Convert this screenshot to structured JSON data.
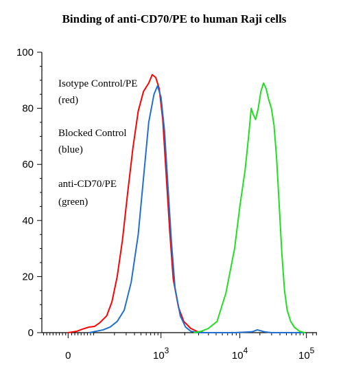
{
  "chart_data": {
    "type": "line",
    "title": "Binding of anti-CD70/PE to human Raji cells",
    "xlabel": "",
    "ylabel": "",
    "ylim": [
      0,
      100
    ],
    "y_ticks": [
      0,
      20,
      40,
      60,
      80,
      100
    ],
    "x_scale": "biexponential",
    "x_tick_labels": [
      {
        "base": "0",
        "exp": ""
      },
      {
        "base": "10",
        "exp": "3"
      },
      {
        "base": "10",
        "exp": "4"
      },
      {
        "base": "10",
        "exp": "5"
      }
    ],
    "legend": [
      {
        "line1": "Isotype Control/PE",
        "line2": "(red)"
      },
      {
        "line1": "Blocked Control",
        "line2": "(blue)"
      },
      {
        "line1": "anti-CD70/PE",
        "line2": "(green)"
      }
    ],
    "series": [
      {
        "color": "#ff0000",
        "points": [
          [
            0,
            0
          ],
          [
            0.2,
            0.2
          ],
          [
            0.5,
            0.5
          ],
          [
            0.8,
            1.2
          ],
          [
            1.2,
            2
          ],
          [
            1.5,
            2.2
          ],
          [
            1.8,
            3.5
          ],
          [
            2.2,
            6
          ],
          [
            2.5,
            11
          ],
          [
            2.8,
            20
          ],
          [
            3.1,
            33
          ],
          [
            3.4,
            50
          ],
          [
            3.7,
            66
          ],
          [
            4.0,
            79
          ],
          [
            4.3,
            86
          ],
          [
            4.6,
            89
          ],
          [
            4.8,
            92
          ],
          [
            5.0,
            91
          ],
          [
            5.2,
            87
          ],
          [
            5.4,
            76
          ],
          [
            5.6,
            56
          ],
          [
            5.8,
            36
          ],
          [
            6.0,
            19
          ],
          [
            6.3,
            9
          ],
          [
            6.6,
            4
          ],
          [
            7.0,
            1.5
          ],
          [
            7.4,
            0.3
          ],
          [
            7.8,
            0
          ]
        ]
      },
      {
        "color": "#1e6fd0",
        "points": [
          [
            1.2,
            0
          ],
          [
            1.6,
            0.5
          ],
          [
            2.0,
            1
          ],
          [
            2.4,
            2
          ],
          [
            2.8,
            4
          ],
          [
            3.2,
            8
          ],
          [
            3.6,
            18
          ],
          [
            4.0,
            35
          ],
          [
            4.3,
            55
          ],
          [
            4.6,
            75
          ],
          [
            4.9,
            85
          ],
          [
            5.1,
            88
          ],
          [
            5.3,
            84
          ],
          [
            5.5,
            72
          ],
          [
            5.7,
            52
          ],
          [
            5.9,
            32
          ],
          [
            6.1,
            16
          ],
          [
            6.4,
            6
          ],
          [
            6.7,
            2
          ],
          [
            7.0,
            0.5
          ],
          [
            7.4,
            0
          ],
          [
            8.0,
            0
          ],
          [
            9.5,
            0
          ],
          [
            10.5,
            0.3
          ],
          [
            10.8,
            1
          ],
          [
            11.2,
            0.3
          ],
          [
            11.6,
            0
          ],
          [
            13.5,
            0
          ]
        ]
      },
      {
        "color": "#1fe01f",
        "points": [
          [
            7.2,
            0
          ],
          [
            7.6,
            0.5
          ],
          [
            8.0,
            1.5
          ],
          [
            8.5,
            4
          ],
          [
            9.0,
            14
          ],
          [
            9.5,
            30
          ],
          [
            9.8,
            45
          ],
          [
            10.1,
            58
          ],
          [
            10.3,
            70
          ],
          [
            10.45,
            80
          ],
          [
            10.55,
            78
          ],
          [
            10.7,
            76
          ],
          [
            10.85,
            80
          ],
          [
            11.0,
            86
          ],
          [
            11.15,
            89
          ],
          [
            11.3,
            87
          ],
          [
            11.45,
            83
          ],
          [
            11.6,
            80
          ],
          [
            11.75,
            74
          ],
          [
            11.9,
            62
          ],
          [
            12.05,
            45
          ],
          [
            12.2,
            28
          ],
          [
            12.35,
            15
          ],
          [
            12.5,
            8
          ],
          [
            12.7,
            4
          ],
          [
            12.9,
            2
          ],
          [
            13.2,
            0.5
          ],
          [
            13.5,
            0
          ]
        ]
      }
    ]
  }
}
